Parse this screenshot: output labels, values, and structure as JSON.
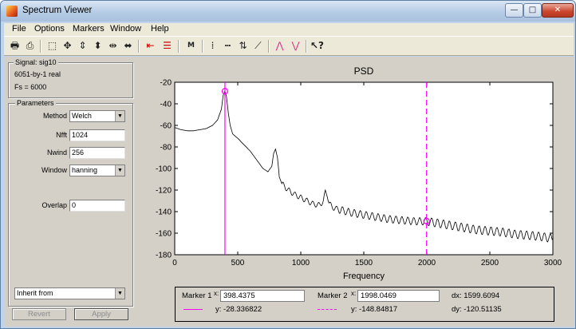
{
  "window": {
    "title": "Spectrum Viewer",
    "controls": {
      "minimize": "—",
      "maximize": "□",
      "close": "✕"
    }
  },
  "menu": [
    "File",
    "Options",
    "Markers",
    "Window",
    "Help"
  ],
  "toolbar": {
    "icons": [
      "print-icon",
      "print-preview-icon",
      "zoom-box-icon",
      "zoom-full-icon",
      "vertical-zoom-icon",
      "horizontal-zoom-out-icon",
      "horizontal-zoom-in-icon",
      "markers-toggle-icon",
      "cursor-icon",
      "marker-settings-icon",
      "vertical-markers-icon",
      "horizontal-markers-icon",
      "track-markers-icon",
      "slope-markers-icon",
      "peaks-icon",
      "valleys-icon",
      "whats-this-icon"
    ]
  },
  "signal": {
    "label": "Signal: sig10",
    "size": "6051-by-1 real",
    "fs": "Fs = 6000"
  },
  "parameters": {
    "label": "Parameters",
    "method_label": "Method",
    "method_value": "Welch",
    "nfft_label": "Nfft",
    "nfft_value": "1024",
    "nwind_label": "Nwind",
    "nwind_value": "256",
    "window_label": "Window",
    "window_value": "hanning",
    "overlap_label": "Overlap",
    "overlap_value": "0",
    "inherit_value": "Inherit from",
    "revert_label": "Revert",
    "apply_label": "Apply"
  },
  "markers": {
    "m1_label": "Marker 1",
    "m1_x_label": "x:",
    "m1_x": "398.4375",
    "m1_y": "y:  -28.336822",
    "m2_label": "Marker 2",
    "m2_x_label": "x:",
    "m2_x": "1998.0469",
    "m2_y": "y:  -148.84817",
    "dx": "dx:  1599.6094",
    "dy": "dy:  -120.51135",
    "m1_color": "#ff00ff",
    "m2_color": "#ff00ff"
  },
  "chart_data": {
    "type": "line",
    "title": "PSD",
    "xlabel": "Frequency",
    "ylabel": "",
    "xlim": [
      0,
      3000
    ],
    "ylim": [
      -180,
      -20
    ],
    "xticks": [
      0,
      500,
      1000,
      1500,
      2000,
      2500,
      3000
    ],
    "yticks": [
      -20,
      -40,
      -60,
      -80,
      -100,
      -120,
      -140,
      -160,
      -180
    ],
    "grid": false,
    "line_color": "#000000",
    "series": [
      {
        "x": [
          0,
          50,
          100,
          150,
          200,
          250,
          300,
          340,
          370,
          385,
          398,
          410,
          425,
          440,
          460,
          500,
          550,
          600,
          650,
          700,
          740,
          770,
          785,
          800,
          815,
          830,
          850,
          900,
          950,
          1000,
          1050,
          1100,
          1150,
          1180,
          1195,
          1210,
          1225,
          1250,
          1300,
          1400,
          1500,
          1600,
          1700,
          1800,
          1900,
          2000,
          2100,
          2200,
          2300,
          2400,
          2500,
          2600,
          2700,
          2800,
          2900,
          3000
        ],
        "y": [
          -62,
          -64,
          -65,
          -65,
          -64,
          -63,
          -60,
          -55,
          -45,
          -32,
          -28,
          -33,
          -48,
          -60,
          -68,
          -72,
          -78,
          -84,
          -92,
          -100,
          -103,
          -98,
          -86,
          -82,
          -90,
          -108,
          -114,
          -120,
          -124,
          -127,
          -130,
          -133,
          -134,
          -130,
          -122,
          -124,
          -132,
          -136,
          -138,
          -141,
          -143,
          -145,
          -147,
          -148,
          -149,
          -149,
          -151,
          -153,
          -155,
          -157,
          -158,
          -159,
          -161,
          -162,
          -163,
          -165
        ]
      }
    ],
    "markers": [
      {
        "x": 398.4375,
        "y": -28.336822
      },
      {
        "x": 1998.0469,
        "y": -148.84817
      }
    ]
  }
}
